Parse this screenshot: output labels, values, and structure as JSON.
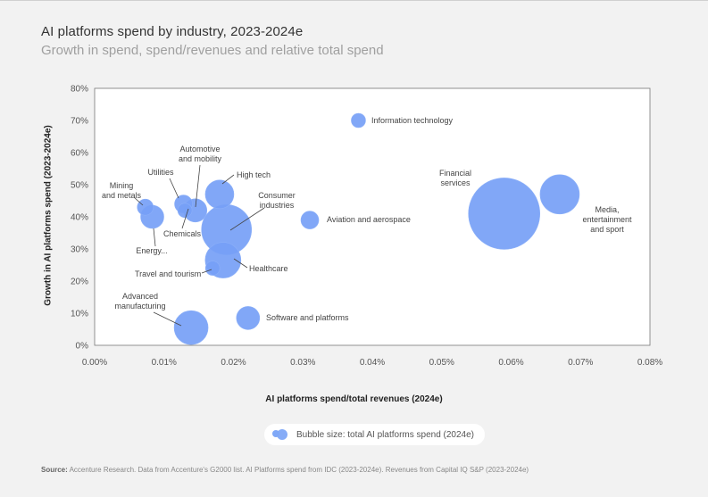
{
  "title": "AI platforms spend by industry, 2023-2024e",
  "subtitle": "Growth in spend, spend/revenues and relative total spend",
  "legend_label": "Bubble size: total AI platforms spend (2024e)",
  "source_label": "Source:",
  "source_text": "Accenture Research. Data from Accenture's G2000 list. AI Platforms spend from IDC (2023-2024e). Revenues from Capital IQ S&P (2023-2024e)",
  "colors": {
    "bubble": "#76a0f6",
    "bubble_edge": "#8cb0f8",
    "axis": "#666666",
    "leader": "#444444"
  },
  "chart_data": {
    "type": "scatter",
    "title": "AI platforms spend by industry, 2023-2024e",
    "xlabel": "AI platforms spend/total revenues (2024e)",
    "ylabel": "Growth in AI platforms spend (2023-2024e)",
    "xlim": [
      0,
      0.08
    ],
    "ylim": [
      0,
      80
    ],
    "x_ticks": [
      "0.00%",
      "0.01%",
      "0.02%",
      "0.03%",
      "0.04%",
      "0.05%",
      "0.06%",
      "0.07%",
      "0.08%"
    ],
    "y_ticks": [
      "0%",
      "10%",
      "20%",
      "30%",
      "40%",
      "50%",
      "60%",
      "70%",
      "80%"
    ],
    "size_unit": "relative total AI platforms spend (bubble radius, arbitrary units)",
    "points": [
      {
        "label": "Information technology",
        "x": 0.038,
        "y": 70,
        "size": 4
      },
      {
        "label": "Financial services",
        "x": 0.059,
        "y": 41,
        "size": 20
      },
      {
        "label": "Media, entertainment and sport",
        "x": 0.067,
        "y": 47,
        "size": 11
      },
      {
        "label": "Aviation and aerospace",
        "x": 0.031,
        "y": 39,
        "size": 5
      },
      {
        "label": "Consumer industries",
        "x": 0.019,
        "y": 36,
        "size": 14
      },
      {
        "label": "High tech",
        "x": 0.018,
        "y": 47,
        "size": 8
      },
      {
        "label": "Automotive and mobility",
        "x": 0.0145,
        "y": 42,
        "size": 6.5
      },
      {
        "label": "Utilities",
        "x": 0.0128,
        "y": 44,
        "size": 5
      },
      {
        "label": "Chemicals",
        "x": 0.013,
        "y": 42,
        "size": 4
      },
      {
        "label": "Mining and metals",
        "x": 0.0073,
        "y": 43,
        "size": 4.5
      },
      {
        "label": "Energy...",
        "x": 0.0083,
        "y": 40,
        "size": 6.5
      },
      {
        "label": "Healthcare",
        "x": 0.0185,
        "y": 26.5,
        "size": 10
      },
      {
        "label": "Travel and tourism",
        "x": 0.017,
        "y": 24,
        "size": 4
      },
      {
        "label": "Software and platforms",
        "x": 0.0221,
        "y": 8.5,
        "size": 6.5
      },
      {
        "label": "Advanced manufacturing",
        "x": 0.0139,
        "y": 5.5,
        "size": 9.5
      }
    ]
  }
}
